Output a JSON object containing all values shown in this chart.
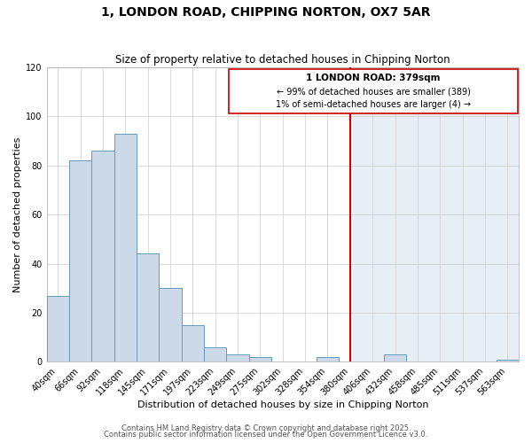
{
  "title": "1, LONDON ROAD, CHIPPING NORTON, OX7 5AR",
  "subtitle": "Size of property relative to detached houses in Chipping Norton",
  "xlabel": "Distribution of detached houses by size in Chipping Norton",
  "ylabel": "Number of detached properties",
  "bar_color": "#ccd9e8",
  "bar_edge_color": "#6699bb",
  "grid_color": "#cccccc",
  "background_color": "#ffffff",
  "plot_bg_left": "#ffffff",
  "plot_bg_right": "#e8eef6",
  "annotation_box_edge": "#cc0000",
  "annotation_line_color": "#cc0000",
  "bin_labels": [
    "40sqm",
    "66sqm",
    "92sqm",
    "118sqm",
    "145sqm",
    "171sqm",
    "197sqm",
    "223sqm",
    "249sqm",
    "275sqm",
    "302sqm",
    "328sqm",
    "354sqm",
    "380sqm",
    "406sqm",
    "432sqm",
    "458sqm",
    "485sqm",
    "511sqm",
    "537sqm",
    "563sqm"
  ],
  "bar_heights": [
    27,
    82,
    86,
    93,
    44,
    30,
    15,
    6,
    3,
    2,
    0,
    0,
    2,
    0,
    0,
    3,
    0,
    0,
    0,
    0,
    1
  ],
  "property_line_bin_index": 13.0,
  "ylim": [
    0,
    120
  ],
  "yticks": [
    0,
    20,
    40,
    60,
    80,
    100,
    120
  ],
  "annotation_text_line1": "1 LONDON ROAD: 379sqm",
  "annotation_text_line2": "← 99% of detached houses are smaller (389)",
  "annotation_text_line3": "1% of semi-detached houses are larger (4) →",
  "footer_line1": "Contains HM Land Registry data © Crown copyright and database right 2025.",
  "footer_line2": "Contains public sector information licensed under the Open Government Licence v3.0.",
  "title_fontsize": 10,
  "subtitle_fontsize": 8.5,
  "axis_label_fontsize": 8,
  "tick_fontsize": 7,
  "annotation_fontsize": 7.5,
  "footer_fontsize": 6
}
